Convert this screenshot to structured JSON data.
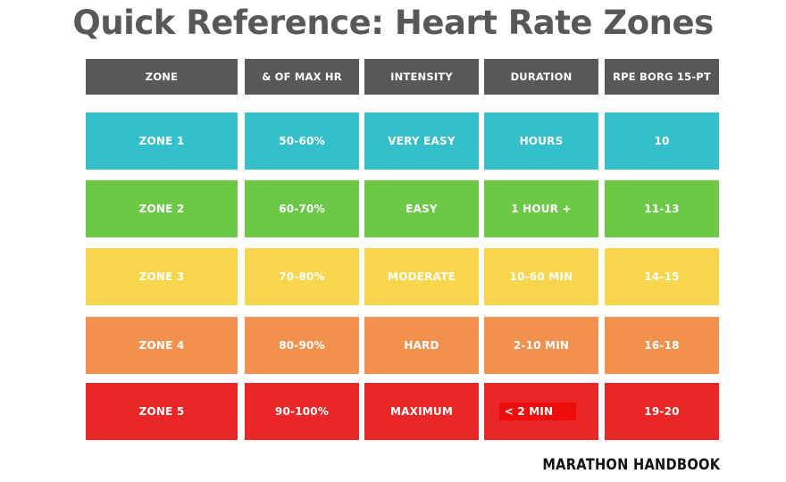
{
  "title": "Quick Reference: Heart Rate Zones",
  "brand": "MARATHON HANDBOOK",
  "table": {
    "headers": [
      "ZONE",
      "& OF MAX HR",
      "INTENSITY",
      "DURATION",
      "RPE BORG 15-PT"
    ],
    "header_color": "#58585a",
    "rows": [
      {
        "color": "#35bfcb",
        "cells": [
          "ZONE 1",
          "50-60%",
          "VERY EASY",
          "HOURS",
          "10"
        ]
      },
      {
        "color": "#6cc846",
        "cells": [
          "ZONE 2",
          "60-70%",
          "EASY",
          "1 HOUR +",
          "11-13"
        ]
      },
      {
        "color": "#f7d54d",
        "cells": [
          "ZONE 3",
          "70-80%",
          "MODERATE",
          "10-60 MIN",
          "14-15"
        ]
      },
      {
        "color": "#f2914d",
        "cells": [
          "ZONE 4",
          "80-90%",
          "HARD",
          "2-10 MIN",
          "16-18"
        ]
      },
      {
        "color": "#ea2626",
        "cells": [
          "ZONE 5",
          "90-100%",
          "MAXIMUM",
          "< 2 MIN",
          "19-20"
        ]
      }
    ]
  }
}
